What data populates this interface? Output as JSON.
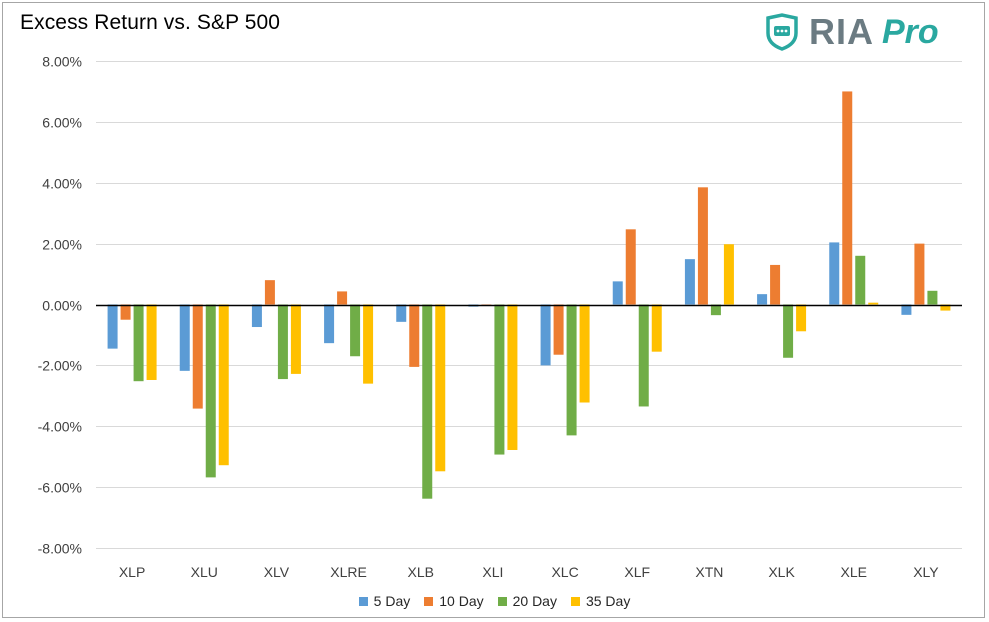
{
  "title": "Excess Return vs. S&P 500",
  "logo": {
    "brand": "RIA",
    "suffix": "Pro",
    "brand_color": "#6b7b82",
    "accent_color": "#2aa8a0",
    "icon": "shield-dots-icon"
  },
  "chart_data": {
    "type": "bar",
    "title": "Excess Return vs. S&P 500",
    "categories": [
      "XLP",
      "XLU",
      "XLV",
      "XLRE",
      "XLB",
      "XLI",
      "XLC",
      "XLF",
      "XTN",
      "XLK",
      "XLE",
      "XLY"
    ],
    "series": [
      {
        "name": "5 Day",
        "color": "#5b9bd5",
        "values": [
          -1.45,
          -2.18,
          -0.74,
          -1.27,
          -0.57,
          -0.07,
          -2.0,
          0.76,
          1.49,
          0.34,
          2.04,
          -0.34
        ]
      },
      {
        "name": "10 Day",
        "color": "#ed7d31",
        "values": [
          -0.5,
          -3.42,
          0.8,
          0.43,
          -2.05,
          -0.03,
          -1.65,
          2.47,
          3.85,
          1.3,
          7.0,
          2.0
        ]
      },
      {
        "name": "20 Day",
        "color": "#70ad47",
        "values": [
          -2.52,
          -5.68,
          -2.45,
          -1.7,
          -6.38,
          -4.93,
          -4.3,
          -3.35,
          -0.35,
          -1.75,
          1.6,
          0.45
        ]
      },
      {
        "name": "35 Day",
        "color": "#ffc000",
        "values": [
          -2.48,
          -5.28,
          -2.28,
          -2.6,
          -5.48,
          -4.78,
          -3.22,
          -1.55,
          1.98,
          -0.88,
          0.06,
          -0.2
        ]
      }
    ],
    "ylim": [
      -8,
      8
    ],
    "ytick_step": 2,
    "ytick_labels": [
      "8.00%",
      "6.00%",
      "4.00%",
      "2.00%",
      "0.00%",
      "-2.00%",
      "-4.00%",
      "-6.00%",
      "-8.00%"
    ],
    "grid": true,
    "legend_position": "bottom"
  }
}
